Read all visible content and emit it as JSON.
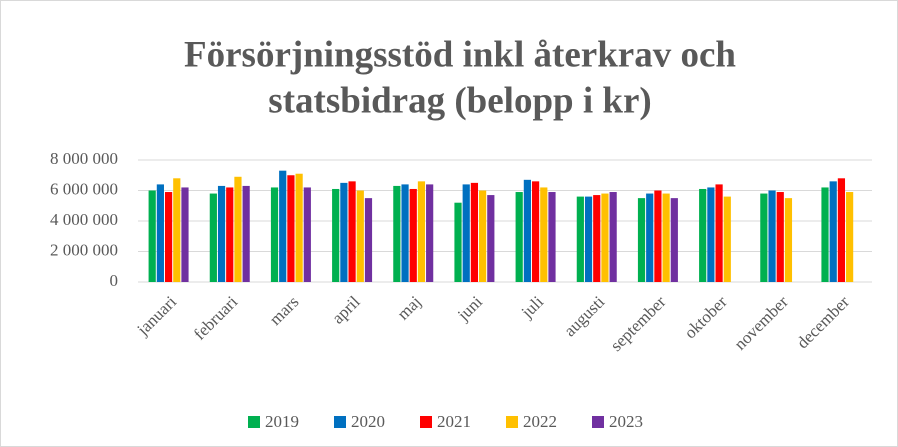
{
  "chart_data": {
    "type": "bar",
    "title": [
      "Försörjningsstöd inkl återkrav och",
      "statsbidrag (belopp i kr)"
    ],
    "categories": [
      "januari",
      "februari",
      "mars",
      "april",
      "maj",
      "juni",
      "juli",
      "augusti",
      "september",
      "oktober",
      "november",
      "december"
    ],
    "series": [
      {
        "name": "2019",
        "color": "#00b050",
        "values": [
          6000000,
          5800000,
          6200000,
          6100000,
          6300000,
          5200000,
          5900000,
          5600000,
          5500000,
          6100000,
          5800000,
          6200000
        ]
      },
      {
        "name": "2020",
        "color": "#0070c0",
        "values": [
          6400000,
          6300000,
          7300000,
          6500000,
          6400000,
          6400000,
          6700000,
          5600000,
          5800000,
          6200000,
          6000000,
          6600000
        ]
      },
      {
        "name": "2021",
        "color": "#ff0000",
        "values": [
          5900000,
          6200000,
          7000000,
          6600000,
          6100000,
          6500000,
          6600000,
          5700000,
          6000000,
          6400000,
          5900000,
          6800000
        ]
      },
      {
        "name": "2022",
        "color": "#ffc000",
        "values": [
          6800000,
          6900000,
          7100000,
          6000000,
          6600000,
          6000000,
          6200000,
          5800000,
          5800000,
          5600000,
          5500000,
          5900000
        ]
      },
      {
        "name": "2023",
        "color": "#7030a0",
        "values": [
          6200000,
          6300000,
          6200000,
          5500000,
          6400000,
          5700000,
          5900000,
          5900000,
          5500000,
          null,
          null,
          null
        ]
      }
    ],
    "ylim": [
      0,
      8000000
    ],
    "yticks": [
      0,
      {
        "value": 2000000,
        "label": "2 000 000"
      },
      {
        "value": 4000000,
        "label": "4 000 000"
      },
      {
        "value": 6000000,
        "label": "6 000 000"
      },
      {
        "value": 8000000,
        "label": "8 000 000"
      }
    ],
    "grid": true,
    "legend": "bottom"
  }
}
